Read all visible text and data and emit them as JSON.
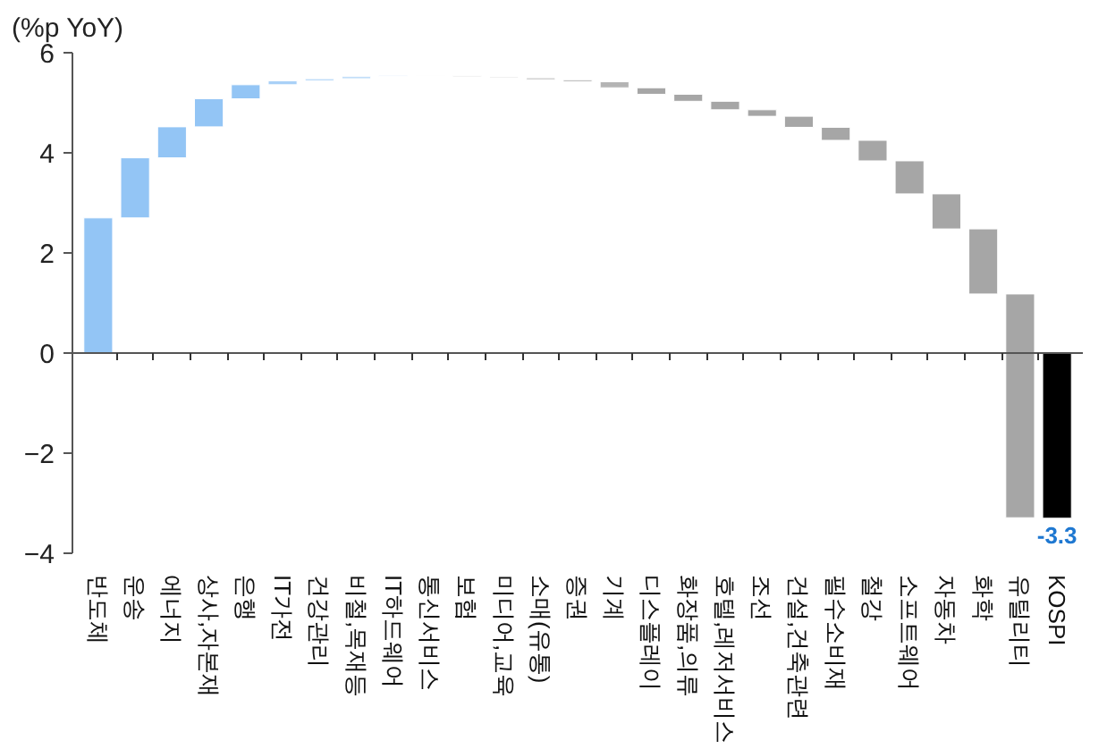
{
  "chart_data": {
    "type": "bar",
    "ylabel": "(%p YoY)",
    "categories": [
      "반도체",
      "운송",
      "에너지",
      "상사,자본재",
      "은행",
      "IT가전",
      "건강관리",
      "비철,목재등",
      "IT하드웨어",
      "통신서비스",
      "보험",
      "미디어,교육",
      "소매(유통)",
      "증권",
      "기계",
      "디스플레이",
      "화장품,의류",
      "호텔,레저서비스",
      "조선",
      "건설,건축관련",
      "필수소비재",
      "철강",
      "소프트웨어",
      "자동차",
      "화학",
      "유틸리티",
      "KOSPI"
    ],
    "values": [
      2.7,
      1.2,
      0.62,
      0.56,
      0.28,
      0.08,
      0.04,
      0.05,
      0.02,
      -0.01,
      -0.02,
      -0.02,
      -0.04,
      -0.04,
      -0.12,
      -0.13,
      -0.14,
      -0.17,
      -0.13,
      -0.22,
      -0.26,
      -0.41,
      -0.66,
      -0.7,
      -1.3,
      -4.47,
      -3.3
    ],
    "base": [
      0,
      2.7,
      3.9,
      4.52,
      5.08,
      5.36,
      5.44,
      5.48,
      5.53,
      5.55,
      5.54,
      5.52,
      5.5,
      5.46,
      5.42,
      5.3,
      5.17,
      5.03,
      4.86,
      4.73,
      4.51,
      4.25,
      3.84,
      3.18,
      2.48,
      1.18,
      0
    ],
    "colors": [
      "#93c5f5",
      "#93c5f5",
      "#93c5f5",
      "#93c5f5",
      "#93c5f5",
      "#a9d1f7",
      "#b5d8f8",
      "#c2def9",
      "#cfe5fa",
      "#dcdcdc",
      "#d6d6d6",
      "#d0d0d0",
      "#c8c8c8",
      "#c0c0c0",
      "#b4b4b4",
      "#a6a6a6",
      "#a6a6a6",
      "#a6a6a6",
      "#a6a6a6",
      "#a6a6a6",
      "#a6a6a6",
      "#a6a6a6",
      "#a6a6a6",
      "#a6a6a6",
      "#a6a6a6",
      "#a6a6a6",
      "#000000"
    ],
    "value_labels": [
      null,
      null,
      null,
      null,
      null,
      null,
      null,
      null,
      null,
      null,
      null,
      null,
      null,
      null,
      null,
      null,
      null,
      null,
      null,
      null,
      null,
      null,
      null,
      null,
      null,
      null,
      "-3.3"
    ],
    "ylim": [
      -4,
      6
    ],
    "yticks": [
      -4,
      -2,
      0,
      2,
      4,
      6
    ]
  }
}
